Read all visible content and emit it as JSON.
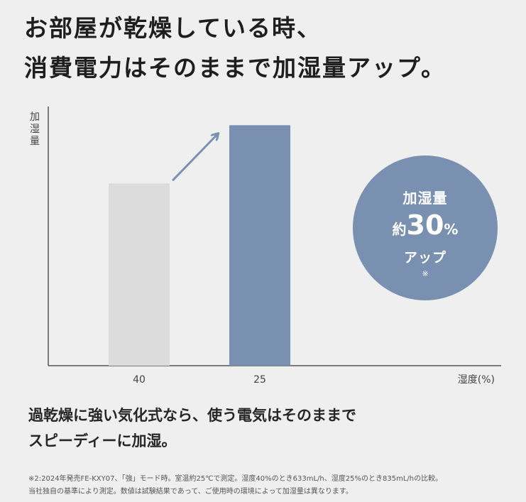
{
  "headline": {
    "line1": "お部屋が乾燥している時、",
    "line2": "消費電力はそのままで加湿量アップ。"
  },
  "chart_data": {
    "type": "bar",
    "ylabel": [
      "加",
      "湿",
      "量"
    ],
    "xlabel": "湿度(%)",
    "categories": [
      "40",
      "25"
    ],
    "values": [
      633,
      835
    ],
    "ylim": [
      0,
      900
    ],
    "grid": false,
    "bar_colors": [
      "#dcdcdc",
      "#7990b1"
    ],
    "axis_color": "#555555",
    "arrow_color": "#7990b1"
  },
  "badge": {
    "line1": "加湿量",
    "prefix": "約",
    "value": "30",
    "unit": "%",
    "line3": "アップ",
    "mark": "※"
  },
  "body_text": {
    "line1": "過乾燥に強い気化式なら、使う電気はそのままで",
    "line2": "スピーディーに加湿。"
  },
  "footnote": {
    "line1": "※2:2024年発売FE-KXY07、「強」モード時。室温約25℃で測定。湿度40%のとき633mL/h、湿度25%のとき835mL/hの比較。",
    "line2": "当社独自の基準により測定。数値は試験結果であって、ご使用時の環境によって加湿量は異なります。"
  }
}
